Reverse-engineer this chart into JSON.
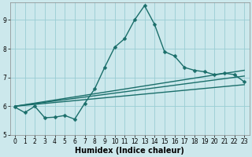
{
  "title": "",
  "xlabel": "Humidex (Indice chaleur)",
  "bg_color": "#cce8ec",
  "line_color": "#1a6e6a",
  "grid_color": "#99cdd4",
  "xlim": [
    -0.5,
    23.5
  ],
  "ylim": [
    5.0,
    9.6
  ],
  "yticks": [
    5,
    6,
    7,
    8,
    9
  ],
  "xticks": [
    0,
    1,
    2,
    3,
    4,
    5,
    6,
    7,
    8,
    9,
    10,
    11,
    12,
    13,
    14,
    15,
    16,
    17,
    18,
    19,
    20,
    21,
    22,
    23
  ],
  "main_series": {
    "x": [
      0,
      1,
      2,
      3,
      4,
      5,
      6,
      7,
      8,
      9,
      10,
      11,
      12,
      13,
      14,
      15,
      16,
      17,
      18,
      19,
      20,
      21,
      22,
      23
    ],
    "y": [
      5.97,
      5.78,
      6.0,
      5.6,
      5.62,
      5.68,
      5.55,
      6.1,
      6.6,
      7.35,
      8.05,
      8.35,
      9.0,
      9.5,
      8.85,
      7.9,
      7.75,
      7.35,
      7.25,
      7.2,
      7.1,
      7.15,
      7.1,
      6.85
    ]
  },
  "linear_series": [
    {
      "x": [
        0,
        23
      ],
      "y": [
        6.0,
        6.75
      ]
    },
    {
      "x": [
        0,
        23
      ],
      "y": [
        6.0,
        7.05
      ]
    },
    {
      "x": [
        0,
        23
      ],
      "y": [
        6.0,
        7.25
      ]
    }
  ],
  "xlabel_fontsize": 7,
  "tick_fontsize": 5.5,
  "linewidth": 1.0,
  "markersize": 2.5
}
